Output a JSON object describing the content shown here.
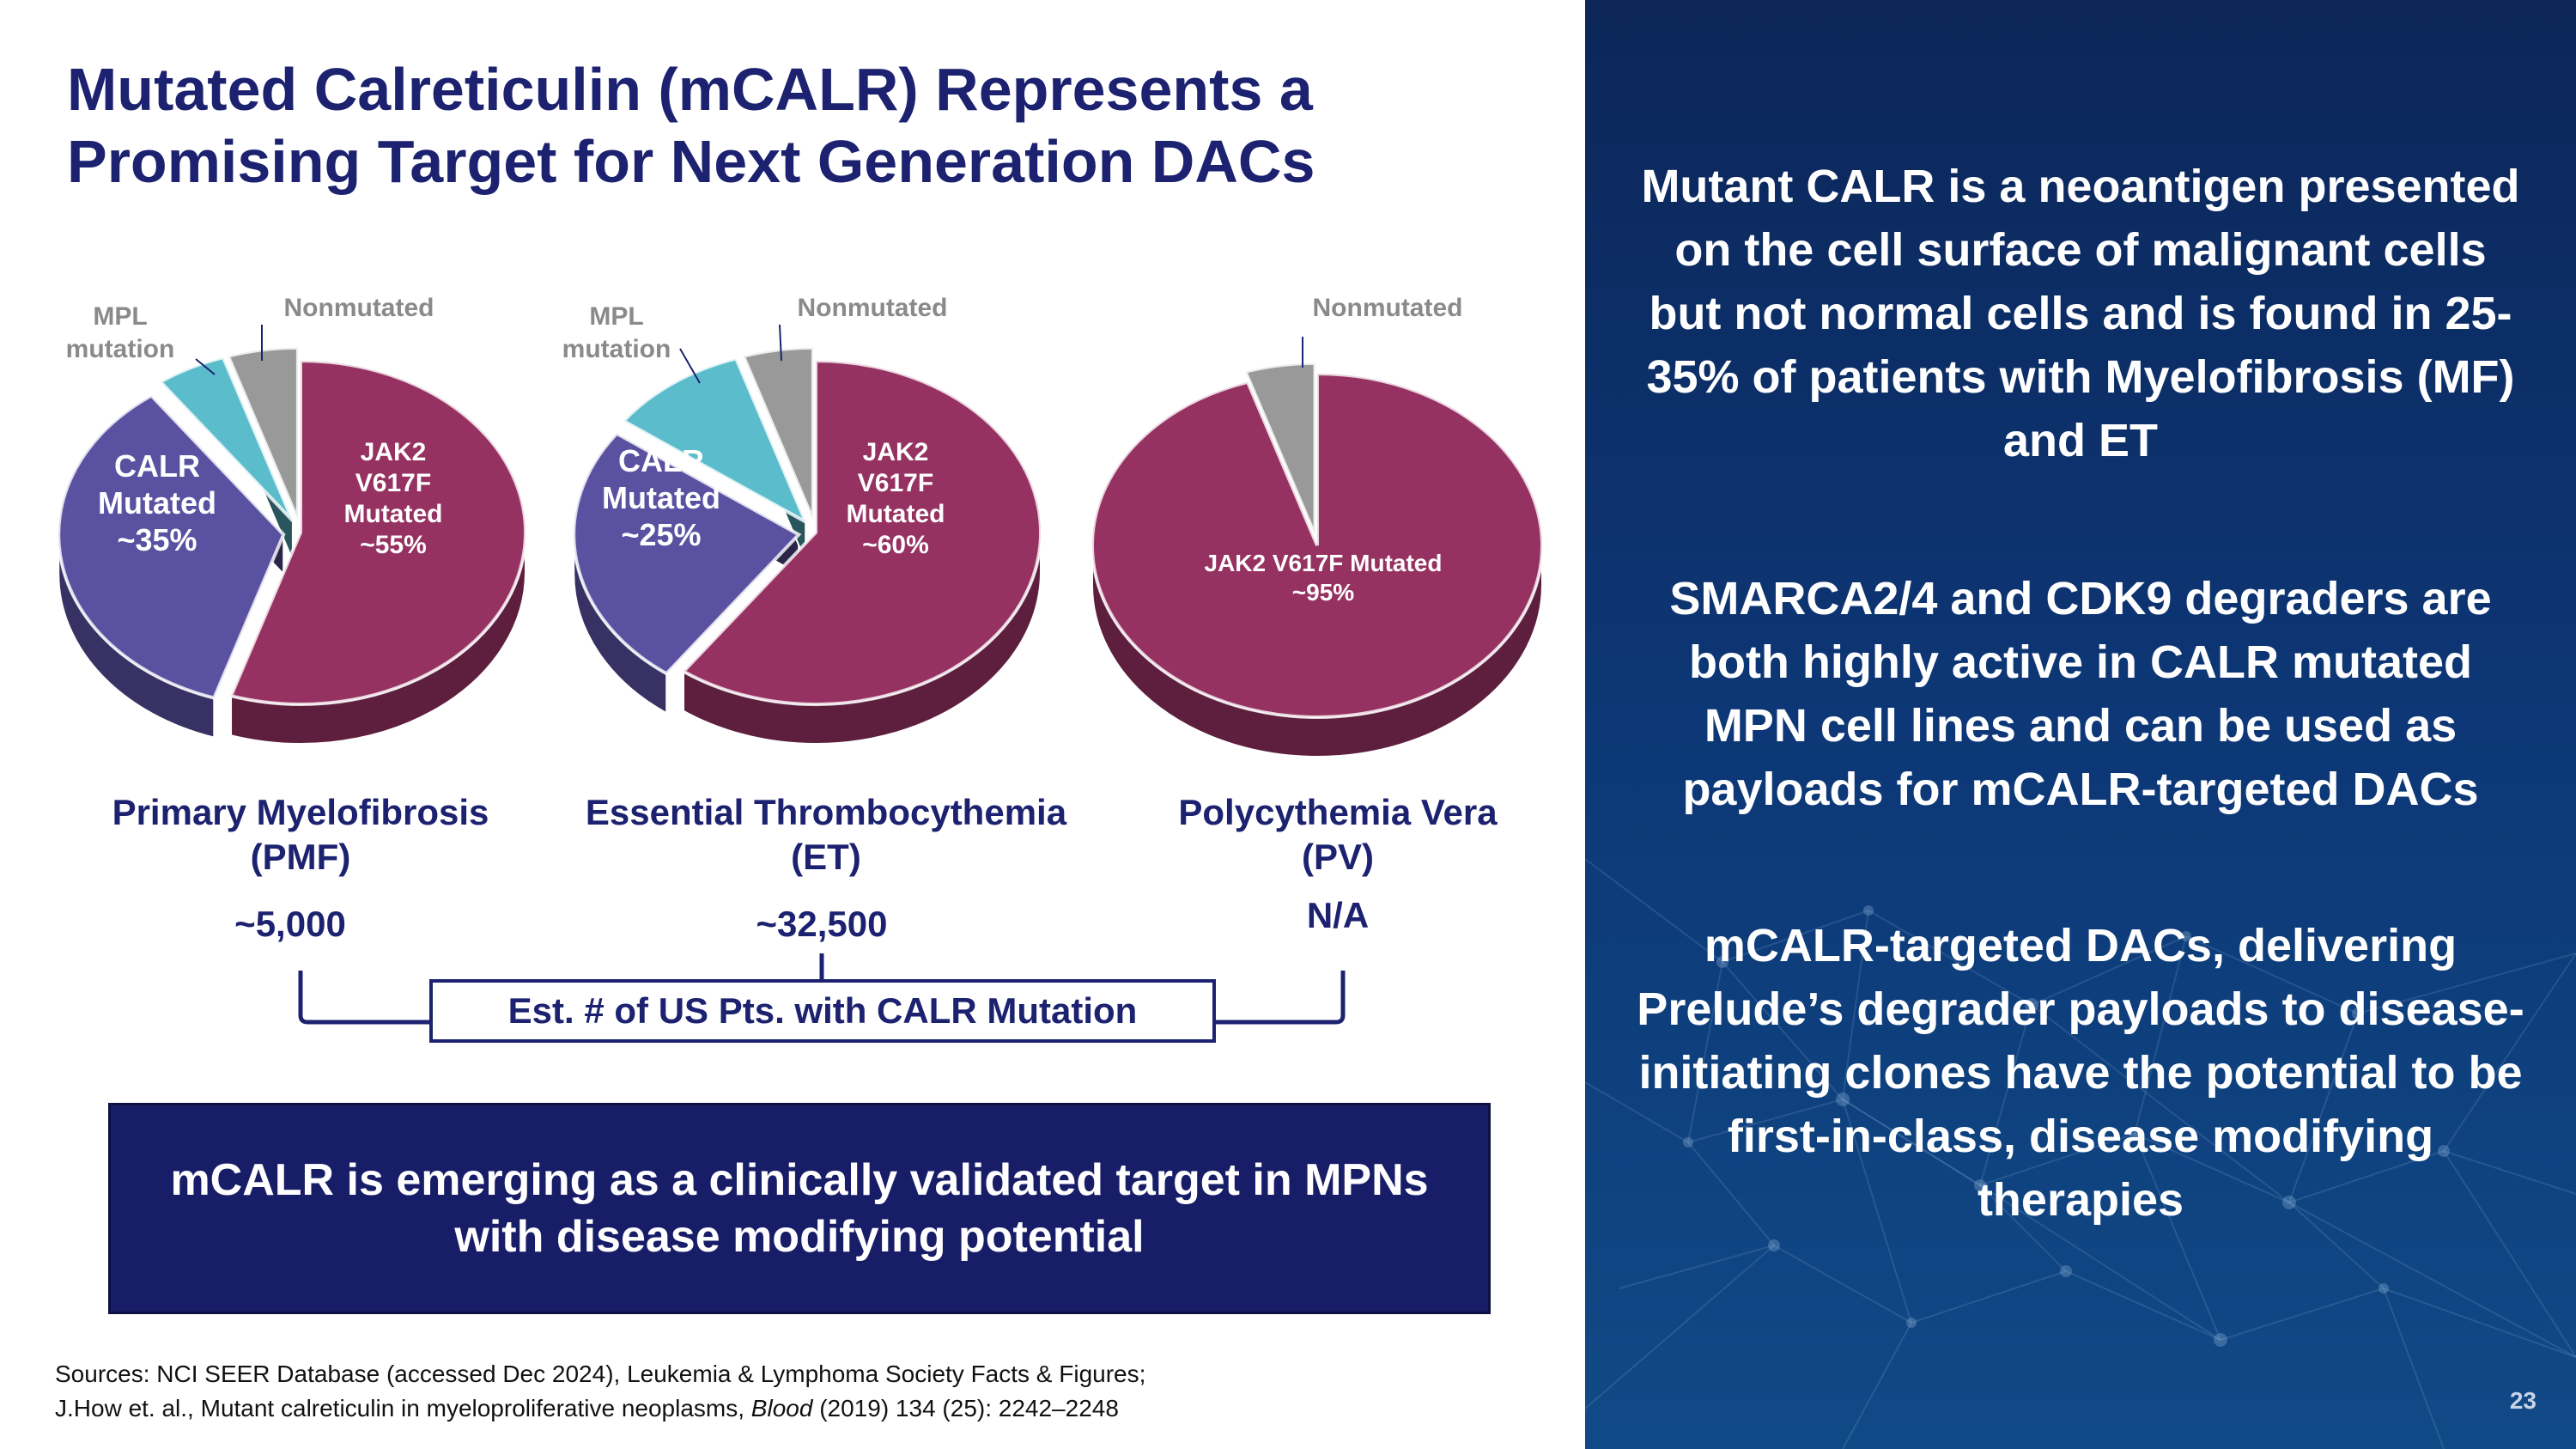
{
  "title_line1": "Mutated Calreticulin (mCALR) Represents a",
  "title_line2": "Promising Target for Next Generation DACs",
  "colors": {
    "jak2": "#963262",
    "calr": "#5b51a1",
    "mpl": "#5bbccc",
    "nonmutated": "#999999"
  },
  "chart_data": [
    {
      "type": "pie",
      "title": "Primary Myelofibrosis (PMF)",
      "slices": [
        {
          "name": "JAK2 V617F Mutated",
          "value": 55,
          "label": "JAK2\nV617F\nMutated\n~55%"
        },
        {
          "name": "CALR Mutated",
          "value": 35,
          "label": "CALR\nMutated\n~35%"
        },
        {
          "name": "MPL mutation",
          "value": 5,
          "label": "MPL\nmutation"
        },
        {
          "name": "Nonmutated",
          "value": 5,
          "label": "Nonmutated"
        }
      ]
    },
    {
      "type": "pie",
      "title": "Essential Thrombocythemia (ET)",
      "slices": [
        {
          "name": "JAK2 V617F Mutated",
          "value": 60,
          "label": "JAK2\nV617F\nMutated\n~60%"
        },
        {
          "name": "CALR Mutated",
          "value": 25,
          "label": "CALR\nMutated\n~25%"
        },
        {
          "name": "MPL mutation",
          "value": 10,
          "label": "MPL\nmutation"
        },
        {
          "name": "Nonmutated",
          "value": 5,
          "label": "Nonmutated"
        }
      ]
    },
    {
      "type": "pie",
      "title": "Polycythemia Vera (PV)",
      "slices": [
        {
          "name": "JAK2 V617F Mutated",
          "value": 95,
          "label": "JAK2 V617F Mutated\n~95%"
        },
        {
          "name": "Nonmutated",
          "value": 5,
          "label": "Nonmutated"
        }
      ]
    }
  ],
  "diseases": [
    {
      "line1": "Primary Myelofibrosis",
      "line2": "(PMF)",
      "count": "~5,000"
    },
    {
      "line1": "Essential Thrombocythemia",
      "line2": "(ET)",
      "count": "~32,500"
    },
    {
      "line1": "Polycythemia Vera",
      "line2": "(PV)",
      "count": "N/A"
    }
  ],
  "est_label": "Est. # of US Pts. with CALR Mutation",
  "callout": "mCALR is emerging as a clinically validated target in MPNs with disease modifying potential",
  "sources": {
    "line1": "Sources: NCI SEER Database (accessed Dec 2024), Leukemia & Lymphoma Society Facts & Figures;",
    "line2_pre": "J.How et. al., Mutant calreticulin in myeloproliferative neoplasms,",
    "line2_journal": "Blood",
    "line2_post": "(2019) 134 (25): 2242–2248"
  },
  "panel": {
    "para1": "Mutant CALR is a neoantigen presented on the cell surface of malignant cells but not normal cells and is found in 25-35% of patients with Myelofibrosis (MF) and ET",
    "para2": "SMARCA2/4 and CDK9 degraders are both highly active in CALR mutated MPN cell lines and can be used as payloads for mCALR-targeted DACs",
    "para3": "mCALR-targeted DACs, delivering Prelude’s degrader payloads to disease-initiating clones have the potential to be first-in-class, disease modifying therapies"
  },
  "page_number": "23"
}
